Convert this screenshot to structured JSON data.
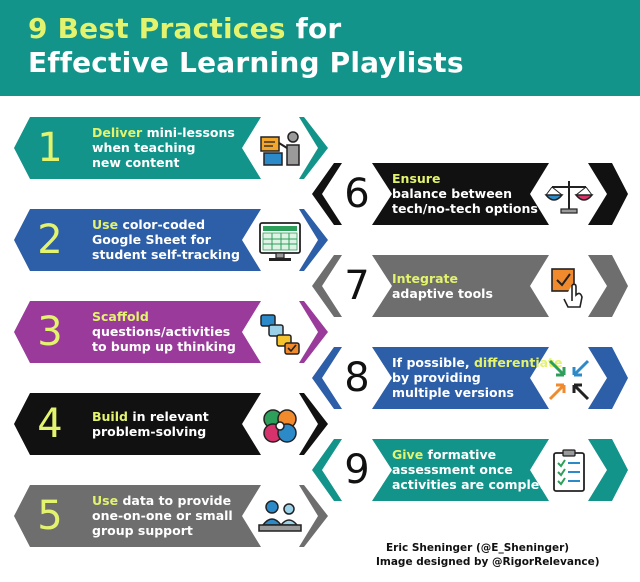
{
  "header": {
    "title_number": "9",
    "title_highlight": "Best Practices",
    "title_rest": "for",
    "title_line2": "Effective Learning Playlists"
  },
  "items": [
    {
      "number": "1",
      "keyword": "Deliver",
      "rest": "mini-lessons",
      "line2": "when teaching",
      "line3": "new content",
      "color": "#13948a",
      "icon": "teacher-board-icon"
    },
    {
      "number": "2",
      "keyword": "Use",
      "rest": "color-coded",
      "line2": "Google Sheet for",
      "line3": "student self-tracking",
      "color": "#2d5ea8",
      "icon": "spreadsheet-monitor-icon"
    },
    {
      "number": "3",
      "keyword": "Scaffold",
      "rest": "",
      "line2": "questions/activities",
      "line3": "to bump up thinking",
      "color": "#9a3b9c",
      "icon": "stacked-cards-icon"
    },
    {
      "number": "4",
      "keyword": "Build",
      "rest": "in relevant",
      "line2": "problem-solving",
      "line3": "",
      "color": "#111111",
      "icon": "gears-puzzle-icon"
    },
    {
      "number": "5",
      "keyword": "Use",
      "rest": "data to provide",
      "line2": "one-on-one or small",
      "line3": "group support",
      "color": "#6e6e6e",
      "icon": "small-group-icon"
    },
    {
      "number": "6",
      "keyword": "Ensure",
      "rest": "",
      "line2": "balance between",
      "line3": "tech/no-tech options",
      "color": "#111111",
      "icon": "balance-scale-icon"
    },
    {
      "number": "7",
      "keyword": "Integrate",
      "rest": "",
      "line2": "adaptive tools",
      "line3": "",
      "color": "#6e6e6e",
      "icon": "touch-select-icon"
    },
    {
      "number": "8",
      "prefix": "If possible,",
      "keyword": "differentiate",
      "rest": "",
      "line2": "by providing",
      "line3": "multiple versions",
      "color": "#2d5ea8",
      "icon": "converging-arrows-icon"
    },
    {
      "number": "9",
      "keyword": "Give",
      "rest": "formative",
      "line2": "assessment once",
      "line3": "activities are complete",
      "color": "#13948a",
      "icon": "checklist-clipboard-icon"
    }
  ],
  "credits": {
    "line1": "Eric Sheninger (@E_Sheninger)",
    "line2": "Image designed by  @RigorRelevance)"
  }
}
